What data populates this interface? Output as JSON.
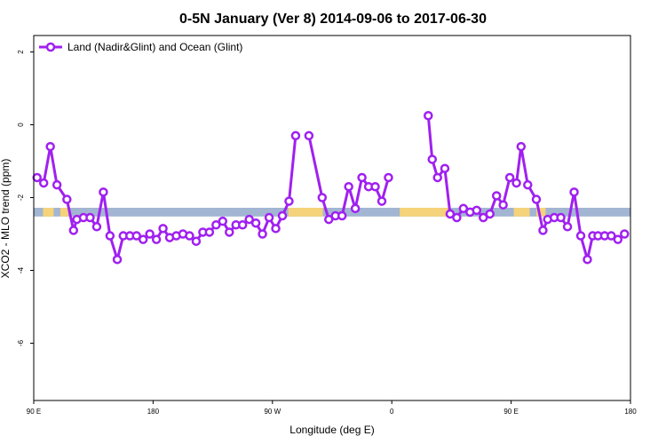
{
  "chart_data": {
    "type": "line",
    "title": "0-5N January (Ver 8)   2014-09-06 to 2017-06-30",
    "xlabel": "Longitude (deg E)",
    "ylabel": "XCO2 - MLO trend (ppm)",
    "x_ticks": [
      {
        "value": 90,
        "label": "90 E"
      },
      {
        "value": 180,
        "label": "180"
      },
      {
        "value": 270,
        "label": "90 W"
      },
      {
        "value": 360,
        "label": "0"
      },
      {
        "value": 450,
        "label": "90 E"
      },
      {
        "value": 540,
        "label": "180"
      }
    ],
    "y_ticks": [
      {
        "value": 2,
        "label": "2"
      },
      {
        "value": 0,
        "label": "0"
      },
      {
        "value": -2,
        "label": "-2"
      },
      {
        "value": -4,
        "label": "-4"
      },
      {
        "value": -6,
        "label": "-6"
      }
    ],
    "xlim": [
      90,
      540
    ],
    "ylim": [
      -7.5,
      2.5
    ],
    "legend_position": "top-left",
    "series": [
      {
        "name": "Land (Nadir&Glint) and Ocean (Glint)",
        "color": "#a020f0",
        "segments": [
          [
            {
              "x": 92.5,
              "y": -1.45
            },
            {
              "x": 97.5,
              "y": -1.6
            },
            {
              "x": 102.5,
              "y": -0.6
            },
            {
              "x": 107.5,
              "y": -1.65
            },
            {
              "x": 115,
              "y": -2.05
            },
            {
              "x": 120,
              "y": -2.9
            },
            {
              "x": 122.5,
              "y": -2.6
            },
            {
              "x": 127.5,
              "y": -2.55
            },
            {
              "x": 132.5,
              "y": -2.55
            },
            {
              "x": 137.5,
              "y": -2.8
            },
            {
              "x": 142.5,
              "y": -1.85
            },
            {
              "x": 147.5,
              "y": -3.05
            },
            {
              "x": 153,
              "y": -3.7
            },
            {
              "x": 157.5,
              "y": -3.05
            },
            {
              "x": 162.5,
              "y": -3.05
            },
            {
              "x": 167.5,
              "y": -3.05
            },
            {
              "x": 172.5,
              "y": -3.15
            },
            {
              "x": 177.5,
              "y": -3.0
            },
            {
              "x": 182.5,
              "y": -3.15
            },
            {
              "x": 187.5,
              "y": -2.85
            },
            {
              "x": 192.5,
              "y": -3.1
            },
            {
              "x": 197.5,
              "y": -3.05
            },
            {
              "x": 202.5,
              "y": -3.0
            },
            {
              "x": 207.5,
              "y": -3.05
            },
            {
              "x": 212.5,
              "y": -3.2
            },
            {
              "x": 217.5,
              "y": -2.95
            },
            {
              "x": 222.5,
              "y": -2.95
            },
            {
              "x": 227.5,
              "y": -2.75
            },
            {
              "x": 232.5,
              "y": -2.65
            },
            {
              "x": 237.5,
              "y": -2.95
            },
            {
              "x": 242.5,
              "y": -2.75
            },
            {
              "x": 247.5,
              "y": -2.75
            },
            {
              "x": 252.5,
              "y": -2.6
            },
            {
              "x": 257.5,
              "y": -2.7
            },
            {
              "x": 262.5,
              "y": -3.0
            },
            {
              "x": 267.5,
              "y": -2.55
            },
            {
              "x": 272.5,
              "y": -2.85
            },
            {
              "x": 277.5,
              "y": -2.5
            },
            {
              "x": 282.5,
              "y": -2.1
            },
            {
              "x": 287.5,
              "y": -0.3
            }
          ],
          [
            {
              "x": 297.5,
              "y": -0.3
            },
            {
              "x": 307.5,
              "y": -2.0
            },
            {
              "x": 312.5,
              "y": -2.6
            },
            {
              "x": 317.5,
              "y": -2.5
            },
            {
              "x": 322.5,
              "y": -2.5
            },
            {
              "x": 327.5,
              "y": -1.7
            },
            {
              "x": 332.5,
              "y": -2.3
            },
            {
              "x": 337.5,
              "y": -1.45
            },
            {
              "x": 342.5,
              "y": -1.7
            },
            {
              "x": 347.5,
              "y": -1.7
            },
            {
              "x": 352.5,
              "y": -2.1
            },
            {
              "x": 357.5,
              "y": -1.45
            }
          ],
          [
            {
              "x": 387.5,
              "y": 0.25
            },
            {
              "x": 390.5,
              "y": -0.95
            },
            {
              "x": 394.5,
              "y": -1.45
            },
            {
              "x": 400,
              "y": -1.2
            },
            {
              "x": 404,
              "y": -2.45
            },
            {
              "x": 409,
              "y": -2.55
            },
            {
              "x": 414,
              "y": -2.3
            },
            {
              "x": 419,
              "y": -2.4
            },
            {
              "x": 424,
              "y": -2.35
            },
            {
              "x": 429,
              "y": -2.55
            },
            {
              "x": 434,
              "y": -2.45
            },
            {
              "x": 439,
              "y": -1.95
            },
            {
              "x": 444,
              "y": -2.2
            },
            {
              "x": 449,
              "y": -1.45
            },
            {
              "x": 454,
              "y": -1.6
            },
            {
              "x": 457.5,
              "y": -0.6
            },
            {
              "x": 462.5,
              "y": -1.65
            },
            {
              "x": 469,
              "y": -2.05
            },
            {
              "x": 474,
              "y": -2.9
            },
            {
              "x": 477.5,
              "y": -2.6
            },
            {
              "x": 482.5,
              "y": -2.55
            },
            {
              "x": 487.5,
              "y": -2.55
            },
            {
              "x": 492.5,
              "y": -2.8
            },
            {
              "x": 497.5,
              "y": -1.85
            },
            {
              "x": 502.5,
              "y": -3.05
            },
            {
              "x": 507.5,
              "y": -3.7
            },
            {
              "x": 511.5,
              "y": -3.05
            },
            {
              "x": 515.5,
              "y": -3.05
            },
            {
              "x": 520.5,
              "y": -3.05
            },
            {
              "x": 525.5,
              "y": -3.05
            },
            {
              "x": 530.5,
              "y": -3.15
            },
            {
              "x": 535.5,
              "y": -3.0
            }
          ]
        ]
      }
    ],
    "surface_band": {
      "y_center": -2.4,
      "y_halfwidth": 0.12,
      "colors": {
        "ocean": "#a2b5d2",
        "land": "#f5d37a"
      },
      "land_ranges": [
        [
          97,
          105
        ],
        [
          110,
          116
        ],
        [
          282,
          308
        ],
        [
          366,
          404
        ],
        [
          452,
          464
        ],
        [
          469,
          476
        ]
      ]
    }
  }
}
